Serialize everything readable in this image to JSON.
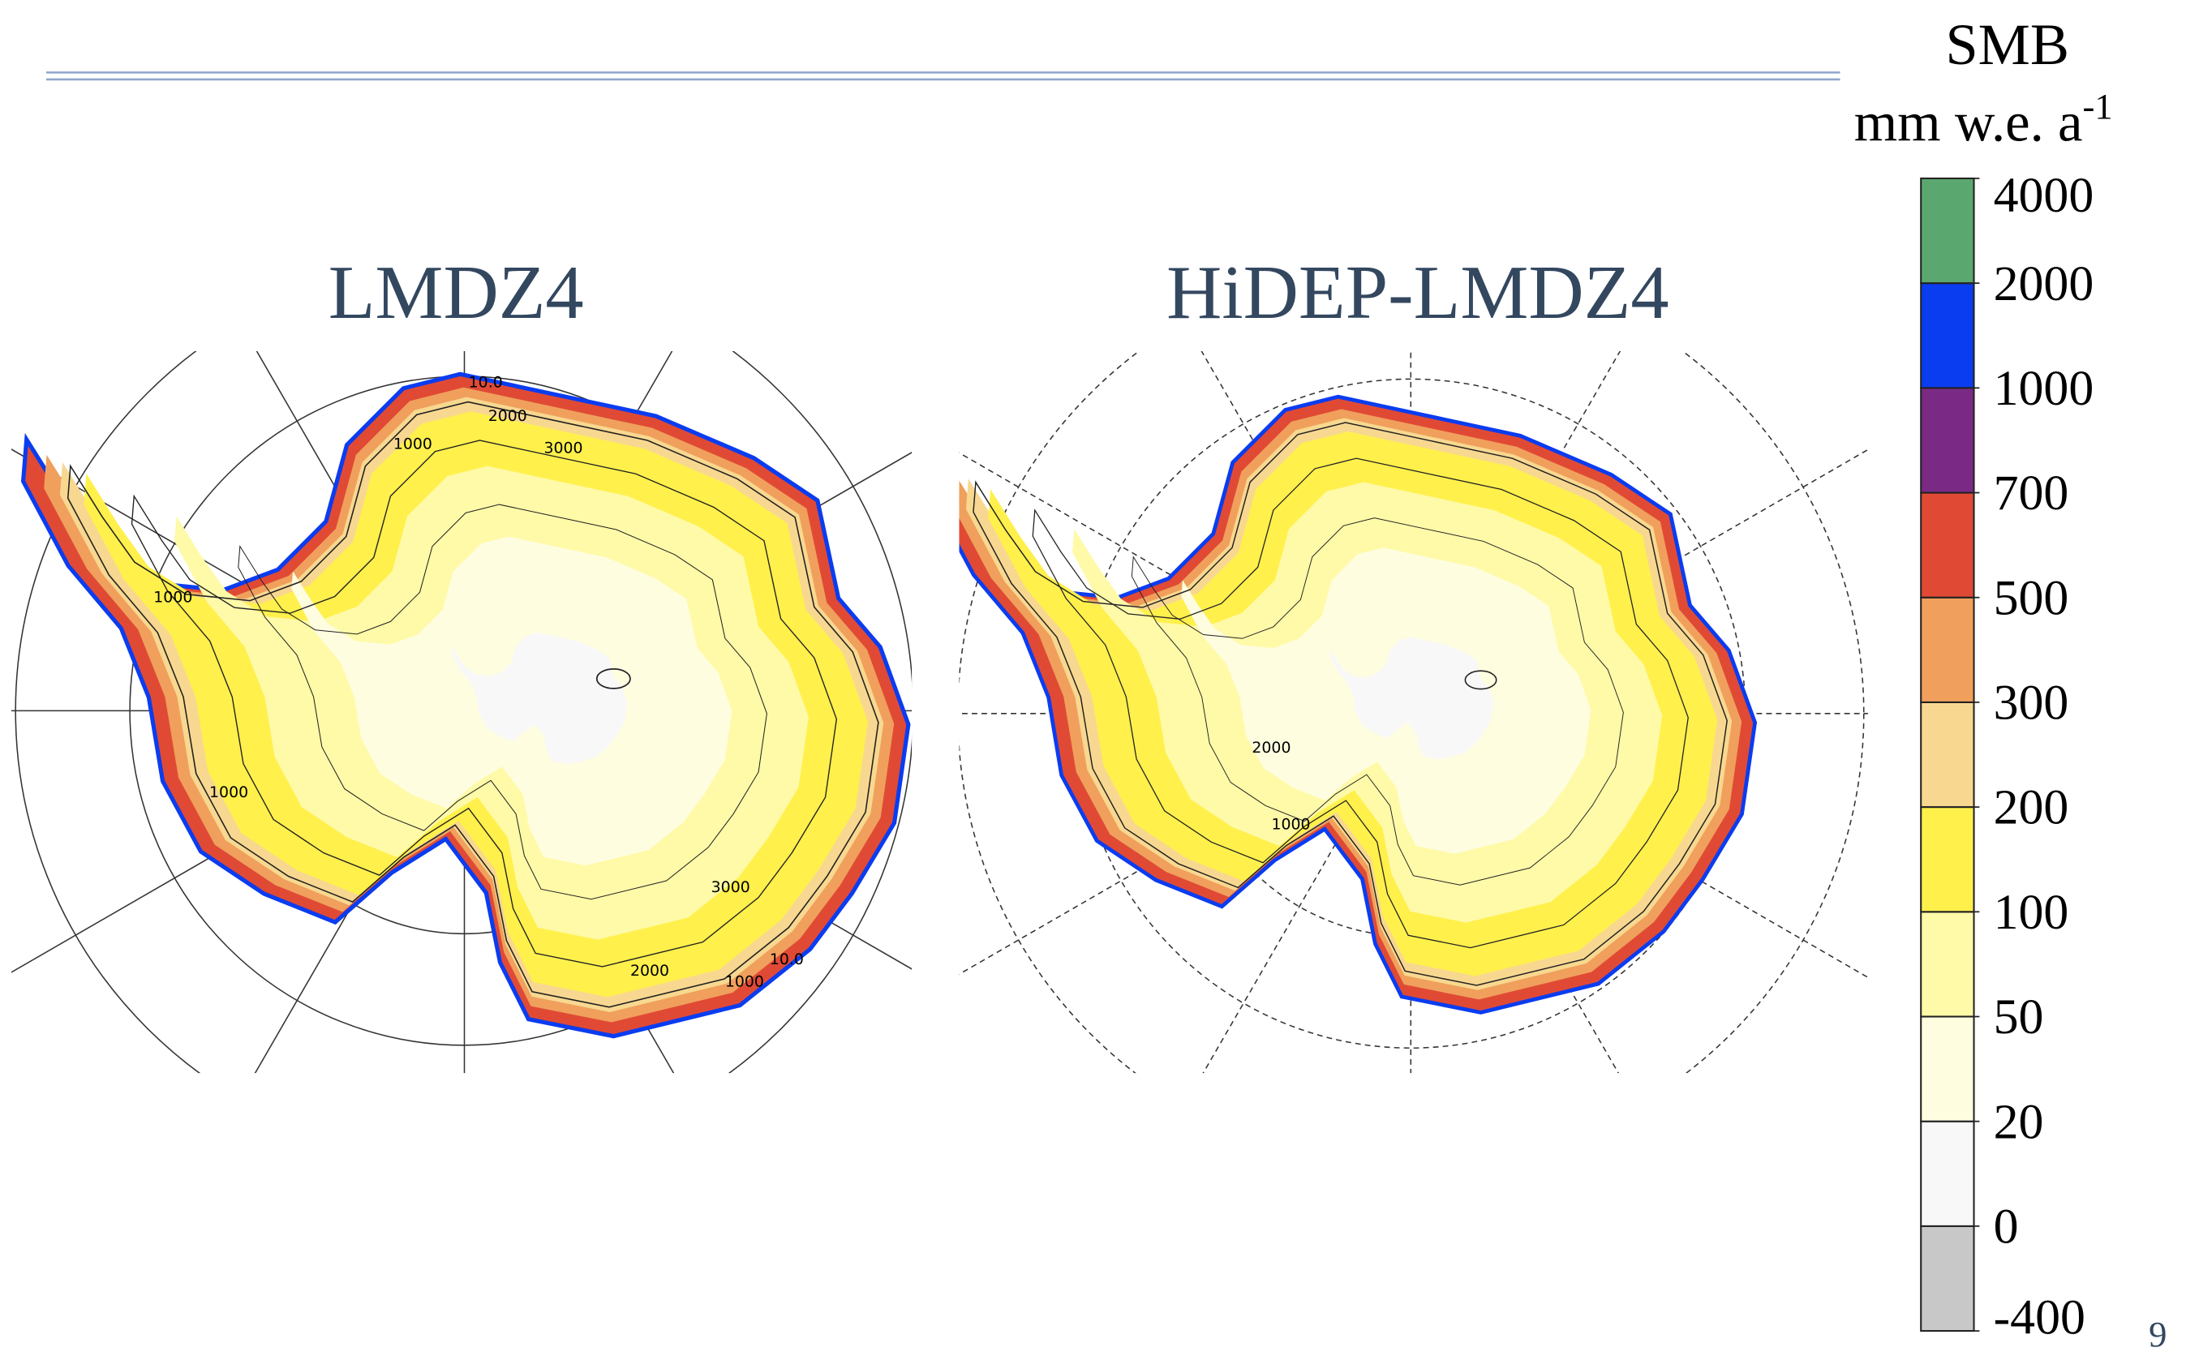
{
  "maps": [
    {
      "title": "LMDZ4",
      "contour_labels": [
        "10.0",
        "2000",
        "3000",
        "1000",
        "1000",
        "1000",
        "3000",
        "2000",
        "1000",
        "10.0"
      ]
    },
    {
      "title": "HiDEP-LMDZ4",
      "contour_labels": [
        "2000",
        "1000"
      ]
    }
  ],
  "colorbar": {
    "title": "SMB",
    "unit": "mm w.e. a",
    "unit_exponent": "-1",
    "levels": [
      -400,
      0,
      20,
      50,
      100,
      200,
      300,
      500,
      700,
      1000,
      2000,
      4000
    ],
    "colors": [
      "#c8c8c8",
      "#f8f8f8",
      "#fffde0",
      "#fffaa8",
      "#fff04c",
      "#f8d890",
      "#f0a05c",
      "#e04a35",
      "#7a2a85",
      "#0a3cf0",
      "#5aa870"
    ]
  },
  "page_number": "9"
}
